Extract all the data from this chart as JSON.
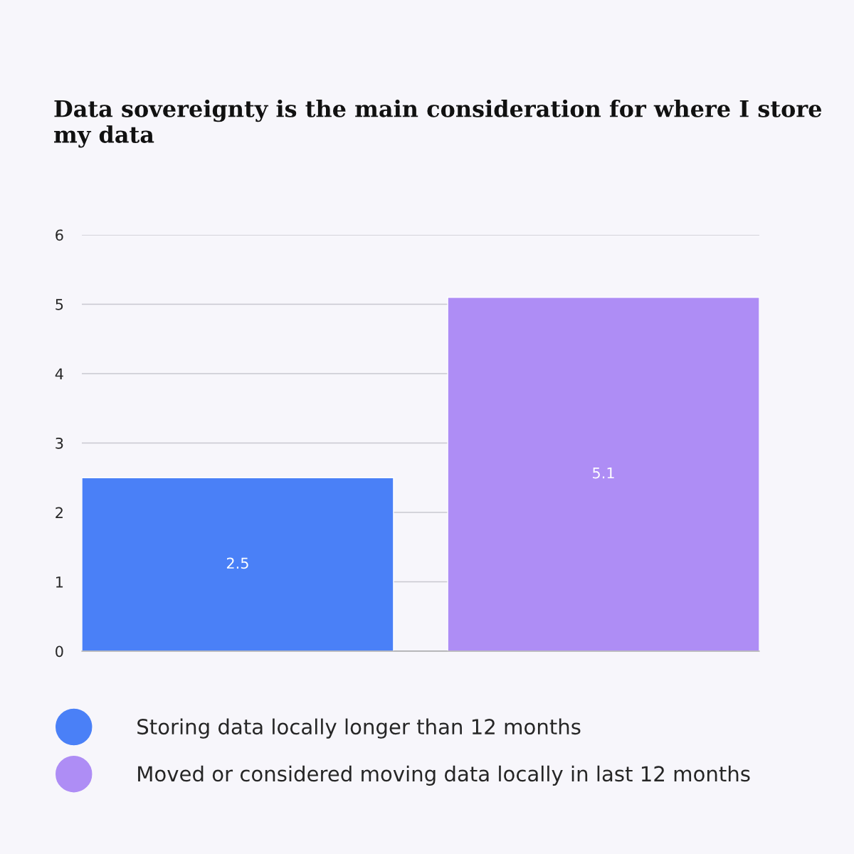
{
  "chart_data": {
    "type": "bar",
    "title": "Data sovereignty is the main consideration for where I store my data",
    "categories": [
      null
    ],
    "series": [
      {
        "name": "Storing data locally longer than 12 months",
        "color": "#4a80f7",
        "values": [
          2.5
        ]
      },
      {
        "name": "Moved or considered moving data locally in last 12 months",
        "color": "#ae8df5",
        "values": [
          5.1
        ]
      }
    ],
    "ylim": [
      0,
      6
    ],
    "yticks": [
      0,
      1,
      2,
      3,
      4,
      5,
      6
    ],
    "grid": "y",
    "legend": "bottom",
    "data_labels": true,
    "tick_labels": "y"
  }
}
